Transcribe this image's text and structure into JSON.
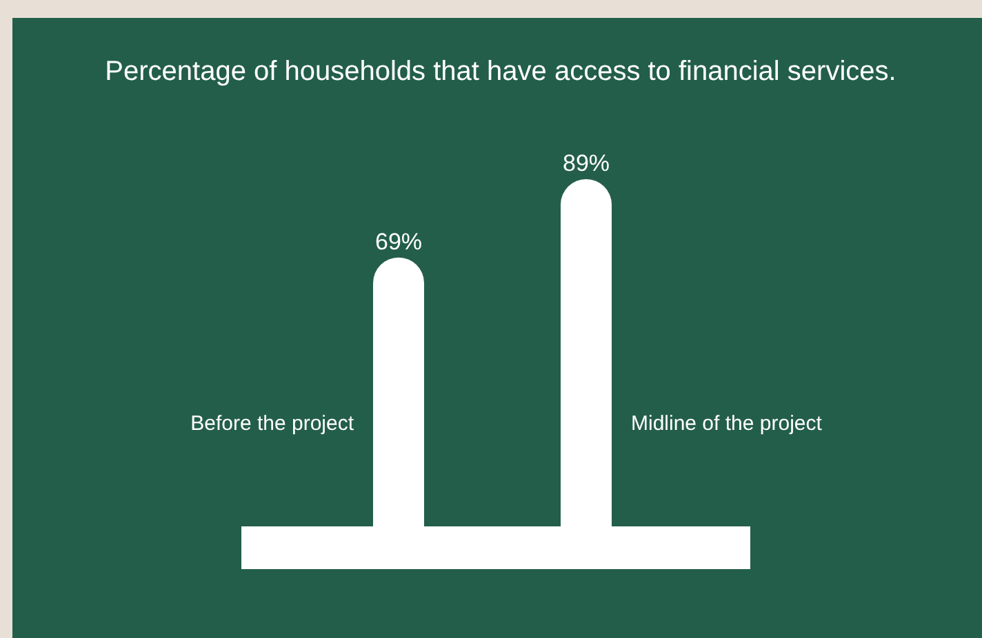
{
  "chart_data": {
    "type": "bar",
    "title": "Percentage of households that have access to financial services.",
    "categories": [
      "Before the project",
      "Midline of the project"
    ],
    "values": [
      69,
      89
    ],
    "value_labels": [
      "69%",
      "89%"
    ],
    "color": "#ffffff"
  }
}
